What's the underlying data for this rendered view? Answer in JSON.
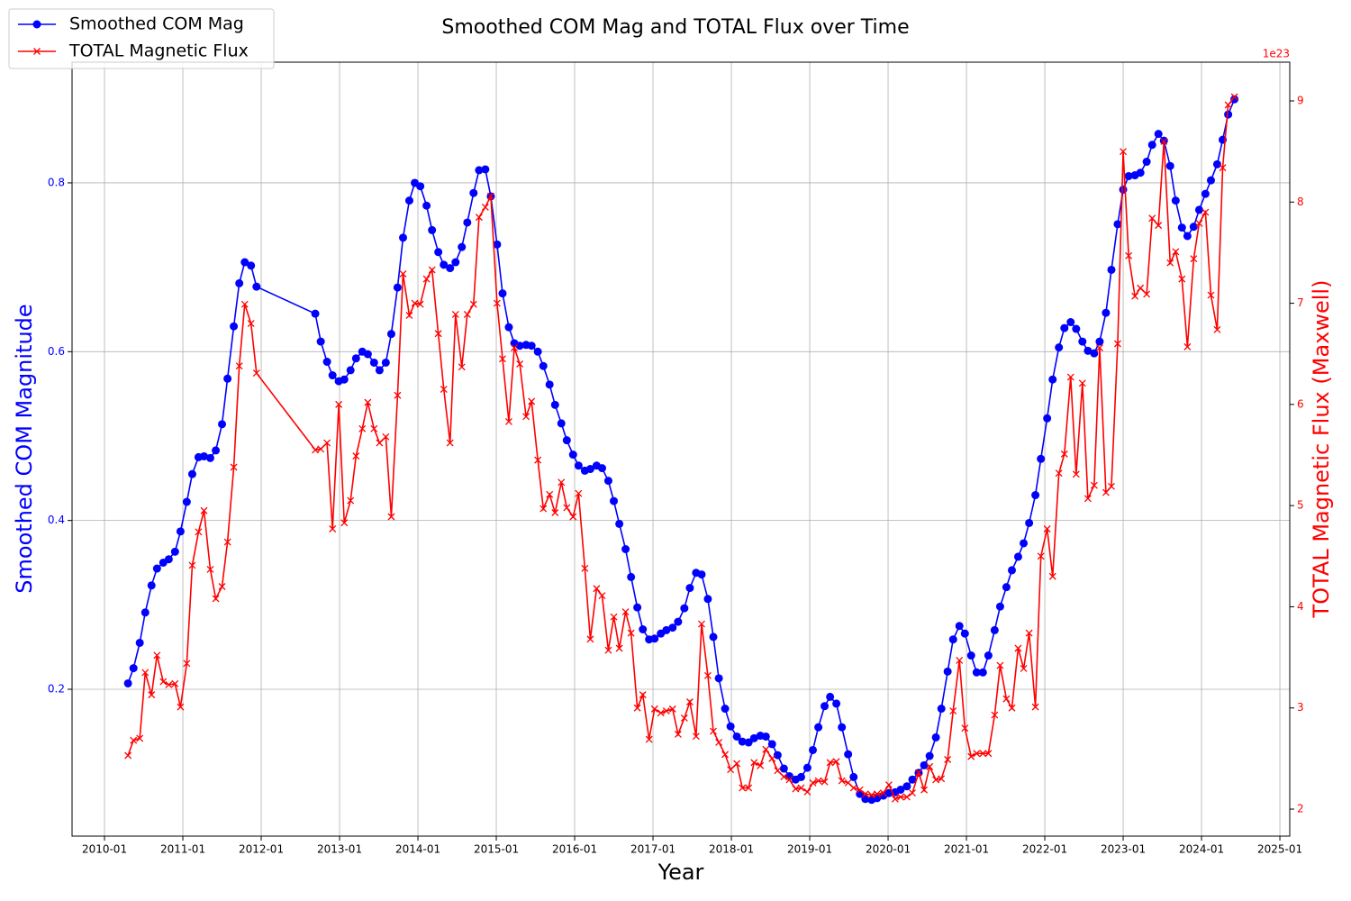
{
  "chart_data": {
    "type": "line",
    "title": "Smoothed COM Mag and TOTAL Flux over Time",
    "xlabel": "Year",
    "ylabel": "Smoothed COM Magnitude",
    "y2label": "TOTAL Magnetic Flux (Maxwell)",
    "y2_offset_label": "1e23",
    "legend": "upper left",
    "grid": true,
    "xlim": [
      2009.586,
      2025.126
    ],
    "xticks": [
      {
        "value": 2010,
        "label": "2010-01"
      },
      {
        "value": 2011,
        "label": "2011-01"
      },
      {
        "value": 2012,
        "label": "2012-01"
      },
      {
        "value": 2013,
        "label": "2013-01"
      },
      {
        "value": 2014,
        "label": "2014-01"
      },
      {
        "value": 2015,
        "label": "2015-01"
      },
      {
        "value": 2016,
        "label": "2016-01"
      },
      {
        "value": 2017,
        "label": "2017-01"
      },
      {
        "value": 2018,
        "label": "2018-01"
      },
      {
        "value": 2019,
        "label": "2019-01"
      },
      {
        "value": 2020,
        "label": "2020-01"
      },
      {
        "value": 2021,
        "label": "2021-01"
      },
      {
        "value": 2022,
        "label": "2022-01"
      },
      {
        "value": 2023,
        "label": "2023-01"
      },
      {
        "value": 2024,
        "label": "2024-01"
      },
      {
        "value": 2025,
        "label": "2025-01"
      }
    ],
    "ylim": [
      0.026,
      0.943
    ],
    "yticks": [
      0.2,
      0.4,
      0.6,
      0.8
    ],
    "y2lim": [
      1.733,
      9.383
    ],
    "y2ticks": [
      2,
      3,
      4,
      5,
      6,
      7,
      8,
      9
    ],
    "x": [
      2010.3,
      2010.37,
      2010.45,
      2010.52,
      2010.6,
      2010.67,
      2010.75,
      2010.82,
      2010.9,
      2010.97,
      2011.05,
      2011.12,
      2011.2,
      2011.27,
      2011.35,
      2011.42,
      2011.5,
      2011.57,
      2011.65,
      2011.72,
      2011.79,
      2011.87,
      2011.94,
      2012.69,
      2012.76,
      2012.84,
      2012.91,
      2012.99,
      2013.06,
      2013.14,
      2013.21,
      2013.29,
      2013.36,
      2013.44,
      2013.51,
      2013.59,
      2013.66,
      2013.74,
      2013.81,
      2013.89,
      2013.96,
      2014.03,
      2014.11,
      2014.18,
      2014.26,
      2014.33,
      2014.41,
      2014.48,
      2014.56,
      2014.63,
      2014.71,
      2014.78,
      2014.86,
      2014.93,
      2015.01,
      2015.08,
      2015.16,
      2015.23,
      2015.3,
      2015.38,
      2015.45,
      2015.53,
      2015.6,
      2015.68,
      2015.75,
      2015.83,
      2015.9,
      2015.98,
      2016.05,
      2016.13,
      2016.2,
      2016.28,
      2016.35,
      2016.43,
      2016.5,
      2016.57,
      2016.65,
      2016.72,
      2016.8,
      2016.87,
      2016.95,
      2017.02,
      2017.1,
      2017.17,
      2017.25,
      2017.32,
      2017.4,
      2017.47,
      2017.55,
      2017.62,
      2017.7,
      2017.77,
      2017.84,
      2017.92,
      2017.99,
      2018.07,
      2018.14,
      2018.22,
      2018.29,
      2018.37,
      2018.44,
      2018.52,
      2018.59,
      2018.67,
      2018.74,
      2018.82,
      2018.89,
      2018.97,
      2019.04,
      2019.11,
      2019.19,
      2019.26,
      2019.34,
      2019.41,
      2019.49,
      2019.56,
      2019.64,
      2019.71,
      2019.79,
      2019.86,
      2019.94,
      2020.01,
      2020.09,
      2020.16,
      2020.24,
      2020.31,
      2020.39,
      2020.46,
      2020.53,
      2020.61,
      2020.68,
      2020.76,
      2020.83,
      2020.91,
      2020.98,
      2021.06,
      2021.13,
      2021.21,
      2021.28,
      2021.36,
      2021.43,
      2021.51,
      2021.58,
      2021.66,
      2021.73,
      2021.8,
      2021.88,
      2021.95,
      2022.03,
      2022.1,
      2022.18,
      2022.25,
      2022.33,
      2022.4,
      2022.48,
      2022.55,
      2022.63,
      2022.7,
      2022.78,
      2022.85,
      2022.93,
      2023.0,
      2023.07,
      2023.15,
      2023.22,
      2023.3,
      2023.37,
      2023.45,
      2023.52,
      2023.6,
      2023.67,
      2023.75,
      2023.82,
      2023.9,
      2023.97,
      2024.05,
      2024.12,
      2024.2,
      2024.27,
      2024.34,
      2024.42
    ],
    "series": [
      {
        "name": "Smoothed COM Mag",
        "color": "#0000ff",
        "marker": "circle",
        "axis": "y",
        "values": [
          0.207,
          0.225,
          0.255,
          0.291,
          0.323,
          0.343,
          0.35,
          0.354,
          0.363,
          0.387,
          0.422,
          0.455,
          0.475,
          0.476,
          0.474,
          0.483,
          0.514,
          0.568,
          0.63,
          0.681,
          0.706,
          0.702,
          0.677,
          0.645,
          0.612,
          0.588,
          0.572,
          0.565,
          0.567,
          0.578,
          0.592,
          0.6,
          0.597,
          0.587,
          0.578,
          0.587,
          0.621,
          0.676,
          0.735,
          0.779,
          0.8,
          0.796,
          0.773,
          0.744,
          0.718,
          0.703,
          0.699,
          0.706,
          0.724,
          0.753,
          0.788,
          0.815,
          0.816,
          0.784,
          0.727,
          0.669,
          0.629,
          0.61,
          0.607,
          0.608,
          0.607,
          0.6,
          0.583,
          0.561,
          0.537,
          0.515,
          0.495,
          0.478,
          0.465,
          0.459,
          0.461,
          0.465,
          0.462,
          0.447,
          0.423,
          0.396,
          0.366,
          0.333,
          0.297,
          0.271,
          0.259,
          0.26,
          0.266,
          0.27,
          0.273,
          0.28,
          0.296,
          0.32,
          0.338,
          0.336,
          0.307,
          0.262,
          0.213,
          0.177,
          0.156,
          0.144,
          0.138,
          0.137,
          0.142,
          0.145,
          0.144,
          0.135,
          0.122,
          0.106,
          0.097,
          0.093,
          0.096,
          0.107,
          0.128,
          0.155,
          0.18,
          0.191,
          0.183,
          0.155,
          0.123,
          0.096,
          0.076,
          0.07,
          0.069,
          0.071,
          0.074,
          0.077,
          0.078,
          0.081,
          0.085,
          0.093,
          0.101,
          0.11,
          0.121,
          0.143,
          0.177,
          0.221,
          0.259,
          0.275,
          0.266,
          0.24,
          0.22,
          0.22,
          0.24,
          0.27,
          0.298,
          0.321,
          0.341,
          0.357,
          0.373,
          0.397,
          0.43,
          0.473,
          0.521,
          0.567,
          0.605,
          0.628,
          0.635,
          0.627,
          0.612,
          0.601,
          0.598,
          0.612,
          0.646,
          0.697,
          0.751,
          0.792,
          0.808,
          0.809,
          0.812,
          0.825,
          0.845,
          0.858,
          0.85,
          0.82,
          0.779,
          0.747,
          0.737,
          0.748,
          0.768,
          0.787,
          0.803,
          0.822,
          0.851,
          0.881,
          0.899
        ]
      },
      {
        "name": "TOTAL Magnetic Flux",
        "color": "#ff0000",
        "marker": "x",
        "axis": "y2",
        "values": [
          2.53,
          2.68,
          2.7,
          3.35,
          3.13,
          3.52,
          3.26,
          3.23,
          3.24,
          3.01,
          3.44,
          4.41,
          4.74,
          4.95,
          4.37,
          4.08,
          4.2,
          4.64,
          5.38,
          6.38,
          6.99,
          6.8,
          6.31,
          5.55,
          5.56,
          5.62,
          4.77,
          6.0,
          4.83,
          5.05,
          5.49,
          5.76,
          6.02,
          5.76,
          5.62,
          5.68,
          4.89,
          6.09,
          7.29,
          6.88,
          7.0,
          6.99,
          7.24,
          7.33,
          6.7,
          6.15,
          5.62,
          6.89,
          6.37,
          6.89,
          6.99,
          7.85,
          7.95,
          8.06,
          7.0,
          6.45,
          5.83,
          6.56,
          6.4,
          5.88,
          6.03,
          5.45,
          4.97,
          5.11,
          4.93,
          5.23,
          4.98,
          4.89,
          5.12,
          4.38,
          3.68,
          4.18,
          4.11,
          3.57,
          3.9,
          3.59,
          3.95,
          3.74,
          3.0,
          3.13,
          2.69,
          2.99,
          2.95,
          2.97,
          2.99,
          2.74,
          2.9,
          3.06,
          2.72,
          3.83,
          3.32,
          2.77,
          2.66,
          2.54,
          2.39,
          2.45,
          2.21,
          2.21,
          2.46,
          2.43,
          2.59,
          2.5,
          2.38,
          2.32,
          2.29,
          2.2,
          2.21,
          2.17,
          2.26,
          2.28,
          2.27,
          2.46,
          2.47,
          2.28,
          2.26,
          2.21,
          2.19,
          2.15,
          2.14,
          2.15,
          2.16,
          2.24,
          2.1,
          2.12,
          2.12,
          2.16,
          2.36,
          2.19,
          2.42,
          2.29,
          2.3,
          2.49,
          2.97,
          3.47,
          2.8,
          2.52,
          2.55,
          2.55,
          2.55,
          2.93,
          3.42,
          3.09,
          3.0,
          3.59,
          3.39,
          3.74,
          3.01,
          4.5,
          4.77,
          4.3,
          5.32,
          5.51,
          6.27,
          5.31,
          6.21,
          5.07,
          5.2,
          6.56,
          5.13,
          5.19,
          6.6,
          8.5,
          7.47,
          7.07,
          7.15,
          7.09,
          7.84,
          7.77,
          8.6,
          7.4,
          7.51,
          7.24,
          6.57,
          7.44,
          7.79,
          7.9,
          7.08,
          6.74,
          8.34,
          8.96,
          9.04
        ]
      }
    ]
  }
}
